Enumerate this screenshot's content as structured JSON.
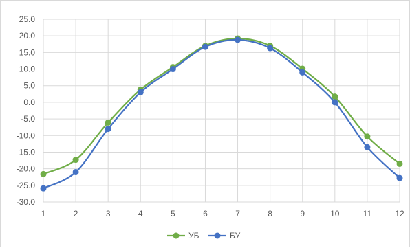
{
  "colors": {
    "series_ub": "#70ad47",
    "series_bu": "#4472c4",
    "grid": "#d9d9d9",
    "text": "#595959"
  },
  "chart_data": {
    "type": "line",
    "smooth": true,
    "x": [
      1,
      2,
      3,
      4,
      5,
      6,
      7,
      8,
      9,
      10,
      11,
      12
    ],
    "xtick_labels": [
      "1",
      "2",
      "3",
      "4",
      "5",
      "6",
      "7",
      "8",
      "9",
      "10",
      "11",
      "12"
    ],
    "ylim": [
      -30,
      25
    ],
    "ytick_step": 5,
    "ytick_labels": [
      "25.0",
      "20.0",
      "15.0",
      "10.0",
      "5.0",
      "0.0",
      "-5.0",
      "-10.0",
      "-15.0",
      "-20.0",
      "-25.0",
      "-30.0"
    ],
    "grid": "vertical-and-horizontal",
    "legend_position": "bottom",
    "series": [
      {
        "name": "УБ",
        "color": "#70ad47",
        "values": [
          -21.6,
          -17.3,
          -6.1,
          3.8,
          10.6,
          17.0,
          19.2,
          17.0,
          10.1,
          1.7,
          -10.3,
          -18.5
        ]
      },
      {
        "name": "БУ",
        "color": "#4472c4",
        "values": [
          -25.9,
          -21.0,
          -8.0,
          3.0,
          10.0,
          16.7,
          18.8,
          16.3,
          9.0,
          0.0,
          -13.5,
          -22.8
        ]
      }
    ],
    "title": "",
    "xlabel": "",
    "ylabel": ""
  }
}
